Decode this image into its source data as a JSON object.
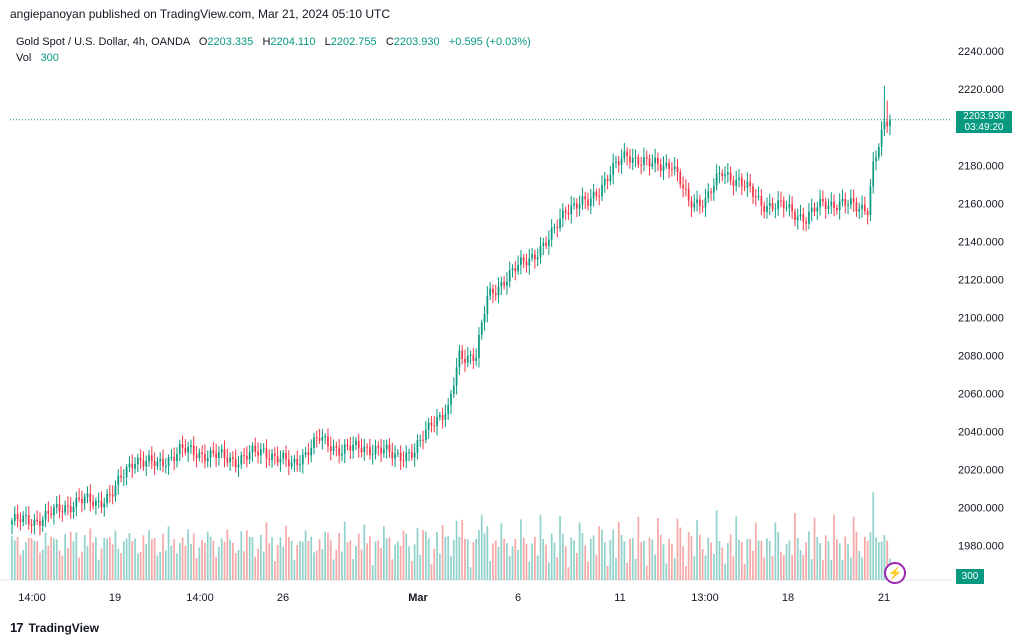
{
  "header": {
    "published": "angiepanoyan published on TradingView.com, Mar 21, 2024 05:10 UTC"
  },
  "legend": {
    "symbol": "Gold Spot / U.S. Dollar, 4h, OANDA",
    "o_label": "O",
    "o": "2203.335",
    "h_label": "H",
    "h": "2204.110",
    "l_label": "L",
    "l": "2202.755",
    "c_label": "C",
    "c": "2203.930",
    "change": "+0.595 (+0.03%)",
    "vol_label": "Vol",
    "vol_value": "300"
  },
  "price_tag": {
    "price": "2203.930",
    "countdown": "03:49:20"
  },
  "volume_tag": "300",
  "footer": {
    "brand": "TradingView",
    "logo": "17"
  },
  "icons": {
    "bolt": "lightning-icon"
  },
  "colors": {
    "up": "#089981",
    "down": "#f23645",
    "vol_up": "#92d2cc",
    "vol_down": "#f7a9a7"
  },
  "chart_data": {
    "type": "candlestick",
    "y_ticks": [
      "2240.000",
      "2220.000",
      "2200.000",
      "2180.000",
      "2160.000",
      "2140.000",
      "2120.000",
      "2100.000",
      "2080.000",
      "2060.000",
      "2040.000",
      "2020.000",
      "2000.000",
      "1980.000"
    ],
    "ylim": [
      1965,
      2248
    ],
    "x_ticks": [
      "14:00",
      "19",
      "14:00",
      "26",
      "Mar",
      "6",
      "11",
      "13:00",
      "18",
      "21"
    ],
    "last_price": 2203.93,
    "ohlc_anchor": [
      [
        0,
        1993
      ],
      [
        8,
        1993
      ],
      [
        16,
        1998
      ],
      [
        24,
        2004
      ],
      [
        30,
        2002
      ],
      [
        36,
        2008
      ],
      [
        44,
        2026
      ],
      [
        52,
        2022
      ],
      [
        60,
        2030
      ],
      [
        70,
        2028
      ],
      [
        80,
        2025
      ],
      [
        90,
        2030
      ],
      [
        100,
        2022
      ],
      [
        110,
        2036
      ],
      [
        118,
        2030
      ],
      [
        126,
        2032
      ],
      [
        136,
        2028
      ],
      [
        144,
        2028
      ],
      [
        150,
        2046
      ],
      [
        156,
        2050
      ],
      [
        160,
        2080
      ],
      [
        166,
        2080
      ],
      [
        170,
        2110
      ],
      [
        176,
        2120
      ],
      [
        184,
        2130
      ],
      [
        192,
        2140
      ],
      [
        198,
        2158
      ],
      [
        206,
        2160
      ],
      [
        214,
        2176
      ],
      [
        220,
        2186
      ],
      [
        228,
        2180
      ],
      [
        236,
        2181
      ],
      [
        242,
        2160
      ],
      [
        248,
        2162
      ],
      [
        254,
        2176
      ],
      [
        260,
        2172
      ],
      [
        268,
        2160
      ],
      [
        276,
        2158
      ],
      [
        284,
        2152
      ],
      [
        290,
        2160
      ],
      [
        296,
        2160
      ],
      [
        302,
        2158
      ],
      [
        306,
        2158
      ],
      [
        308,
        2180
      ],
      [
        312,
        2200
      ],
      [
        314,
        2203.93
      ]
    ]
  }
}
